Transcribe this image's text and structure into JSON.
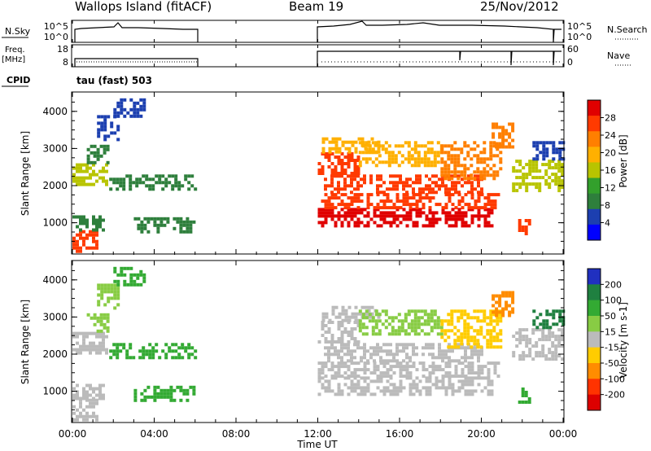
{
  "header": {
    "station": "Wallops Island (fitACF)",
    "beam": "Beam 19",
    "date": "25/Nov/2012"
  },
  "status_panels": {
    "nsky_label": "N.Sky",
    "nsky_ticks": [
      "10^5",
      "10^0"
    ],
    "nsearch_label": "N.Search",
    "nsearch_ticks": [
      "10^5",
      "10^0"
    ],
    "freq_label_1": "Freq.",
    "freq_label_2": "[MHz]",
    "freq_ticks": [
      "18",
      "8"
    ],
    "nave_label": "Nave",
    "nave_ticks": [
      "60",
      "0"
    ],
    "cpid_label": "CPID",
    "cpid_value": "tau (fast) 503"
  },
  "x_axis": {
    "label": "Time UT",
    "ticks": [
      "00:00",
      "04:00",
      "08:00",
      "12:00",
      "16:00",
      "20:00",
      "00:00"
    ]
  },
  "panels": {
    "power": {
      "ylabel": "Slant Range [km]",
      "yticks": [
        "4000",
        "3000",
        "2000",
        "1000"
      ],
      "colorbar_label": "Power [dB]",
      "colorbar_ticks": [
        "28",
        "24",
        "20",
        "16",
        "12",
        "8",
        "4"
      ]
    },
    "velocity": {
      "ylabel": "Slant Range [km]",
      "yticks": [
        "4000",
        "3000",
        "2000",
        "1000"
      ],
      "colorbar_label": "Velocity [m s-1]",
      "colorbar_ticks": [
        "200",
        "100",
        "50",
        "15",
        "-15",
        "-50",
        "-100",
        "-200"
      ]
    }
  },
  "chart_data": {
    "type": "heatmap",
    "x_range_hours": [
      0,
      24
    ],
    "y_range_km": [
      180,
      4500
    ],
    "power_colors": [
      "#0000ff",
      "#1c3fb0",
      "#2e7f3c",
      "#33a02c",
      "#b8c400",
      "#ffb000",
      "#ff7f00",
      "#ff3a00",
      "#e00000"
    ],
    "velocity_colors": [
      "#2030c0",
      "#1f8040",
      "#33aa33",
      "#88cc44",
      "#bbbbbb",
      "#ffcc00",
      "#ff8c00",
      "#ff3300",
      "#dd0000"
    ],
    "data_gaps_hours": [
      [
        6.0,
        12.0
      ]
    ],
    "echo_regions": [
      {
        "t_start": 0.0,
        "t_end": 1.2,
        "range_start": 200,
        "range_end": 800,
        "power_db": 24,
        "velocity": 0
      },
      {
        "t_start": 0.0,
        "t_end": 1.5,
        "range_start": 800,
        "range_end": 1200,
        "power_db": 10,
        "velocity": 10
      },
      {
        "t_start": 0.0,
        "t_end": 1.6,
        "range_start": 2000,
        "range_end": 2600,
        "power_db": 16,
        "velocity": 0
      },
      {
        "t_start": 0.7,
        "t_end": 1.8,
        "range_start": 2600,
        "range_end": 3100,
        "power_db": 8,
        "velocity": 20
      },
      {
        "t_start": 1.2,
        "t_end": 2.2,
        "range_start": 3200,
        "range_end": 3900,
        "power_db": 6,
        "velocity": 20
      },
      {
        "t_start": 2.0,
        "t_end": 3.5,
        "range_start": 3900,
        "range_end": 4350,
        "power_db": 5,
        "velocity": 30
      },
      {
        "t_start": 1.8,
        "t_end": 6.0,
        "range_start": 1900,
        "range_end": 2300,
        "power_db": 7,
        "velocity": 60
      },
      {
        "t_start": 3.0,
        "t_end": 6.0,
        "range_start": 750,
        "range_end": 1150,
        "power_db": 7,
        "velocity": 60
      },
      {
        "t_start": 12.0,
        "t_end": 20.5,
        "range_start": 900,
        "range_end": 1400,
        "power_db": 28,
        "velocity": 0
      },
      {
        "t_start": 12.0,
        "t_end": 20.8,
        "range_start": 1400,
        "range_end": 1800,
        "power_db": 26,
        "velocity": 0
      },
      {
        "t_start": 12.3,
        "t_end": 20.0,
        "range_start": 1800,
        "range_end": 2300,
        "power_db": 24,
        "velocity": 0
      },
      {
        "t_start": 12.0,
        "t_end": 14.0,
        "range_start": 2300,
        "range_end": 2900,
        "power_db": 24,
        "velocity": -10
      },
      {
        "t_start": 12.2,
        "t_end": 15.0,
        "range_start": 2900,
        "range_end": 3300,
        "power_db": 18,
        "velocity": 0
      },
      {
        "t_start": 14.0,
        "t_end": 18.0,
        "range_start": 2500,
        "range_end": 3200,
        "power_db": 20,
        "velocity": 20
      },
      {
        "t_start": 18.0,
        "t_end": 21.0,
        "range_start": 2200,
        "range_end": 3200,
        "power_db": 22,
        "velocity": -20
      },
      {
        "t_start": 20.5,
        "t_end": 21.5,
        "range_start": 3000,
        "range_end": 3700,
        "power_db": 22,
        "velocity": -60
      },
      {
        "t_start": 21.5,
        "t_end": 24.0,
        "range_start": 1900,
        "range_end": 2700,
        "power_db": 14,
        "velocity": 0
      },
      {
        "t_start": 22.5,
        "t_end": 24.0,
        "range_start": 2700,
        "range_end": 3200,
        "power_db": 6,
        "velocity": 100
      },
      {
        "t_start": 21.8,
        "t_end": 22.4,
        "range_start": 700,
        "range_end": 1100,
        "power_db": 24,
        "velocity": 50
      }
    ]
  }
}
